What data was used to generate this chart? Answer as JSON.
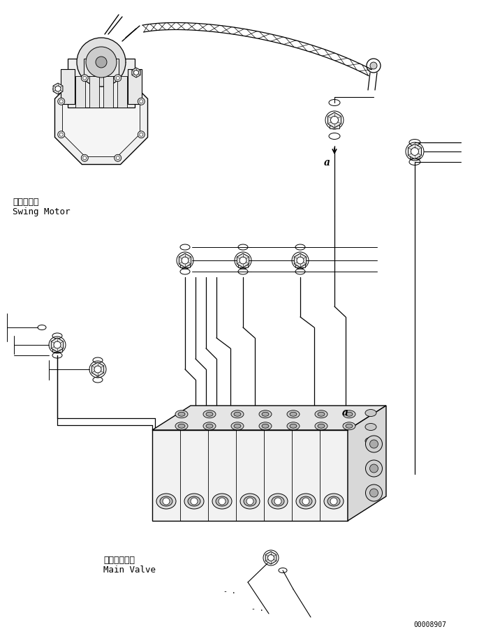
{
  "bg": "#ffffff",
  "lc": "#000000",
  "swing_motor_jp": "旋回モータ",
  "swing_motor_en": "Swing Motor",
  "main_valve_jp": "メインバルブ",
  "main_valve_en": "Main Valve",
  "part_num": "00008907"
}
